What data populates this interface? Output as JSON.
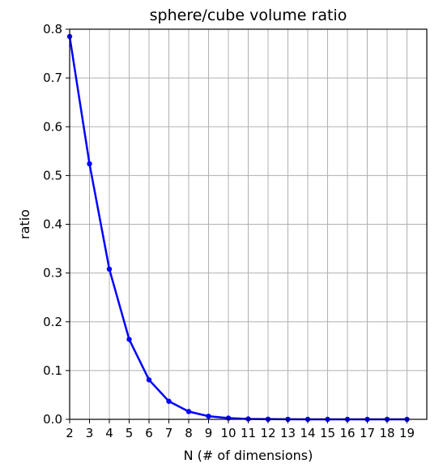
{
  "chart_data": {
    "type": "line",
    "title": "sphere/cube volume ratio",
    "xlabel": "N (# of dimensions)",
    "ylabel": "ratio",
    "x": [
      2,
      3,
      4,
      5,
      6,
      7,
      8,
      9,
      10,
      11,
      12,
      13,
      14,
      15,
      16,
      17,
      18,
      19
    ],
    "series": [
      {
        "values": [
          0.785,
          0.524,
          0.308,
          0.164,
          0.081,
          0.037,
          0.016,
          0.0064,
          0.0025,
          0.00091,
          0.00032,
          0.00011,
          3.5e-05,
          1.1e-05,
          3.3e-06,
          9.5e-07,
          2.6e-07,
          7e-08
        ],
        "color": "#0000ff"
      }
    ],
    "xlim": [
      2,
      20
    ],
    "ylim": [
      0,
      0.8
    ],
    "xticks": [
      2,
      3,
      4,
      5,
      6,
      7,
      8,
      9,
      10,
      11,
      12,
      13,
      14,
      15,
      16,
      17,
      18,
      19
    ],
    "yticks": [
      "0.0",
      "0.1",
      "0.2",
      "0.3",
      "0.4",
      "0.5",
      "0.6",
      "0.7",
      "0.8"
    ],
    "grid": true,
    "grid_color": "#b0b0b0",
    "marker": "circle"
  }
}
